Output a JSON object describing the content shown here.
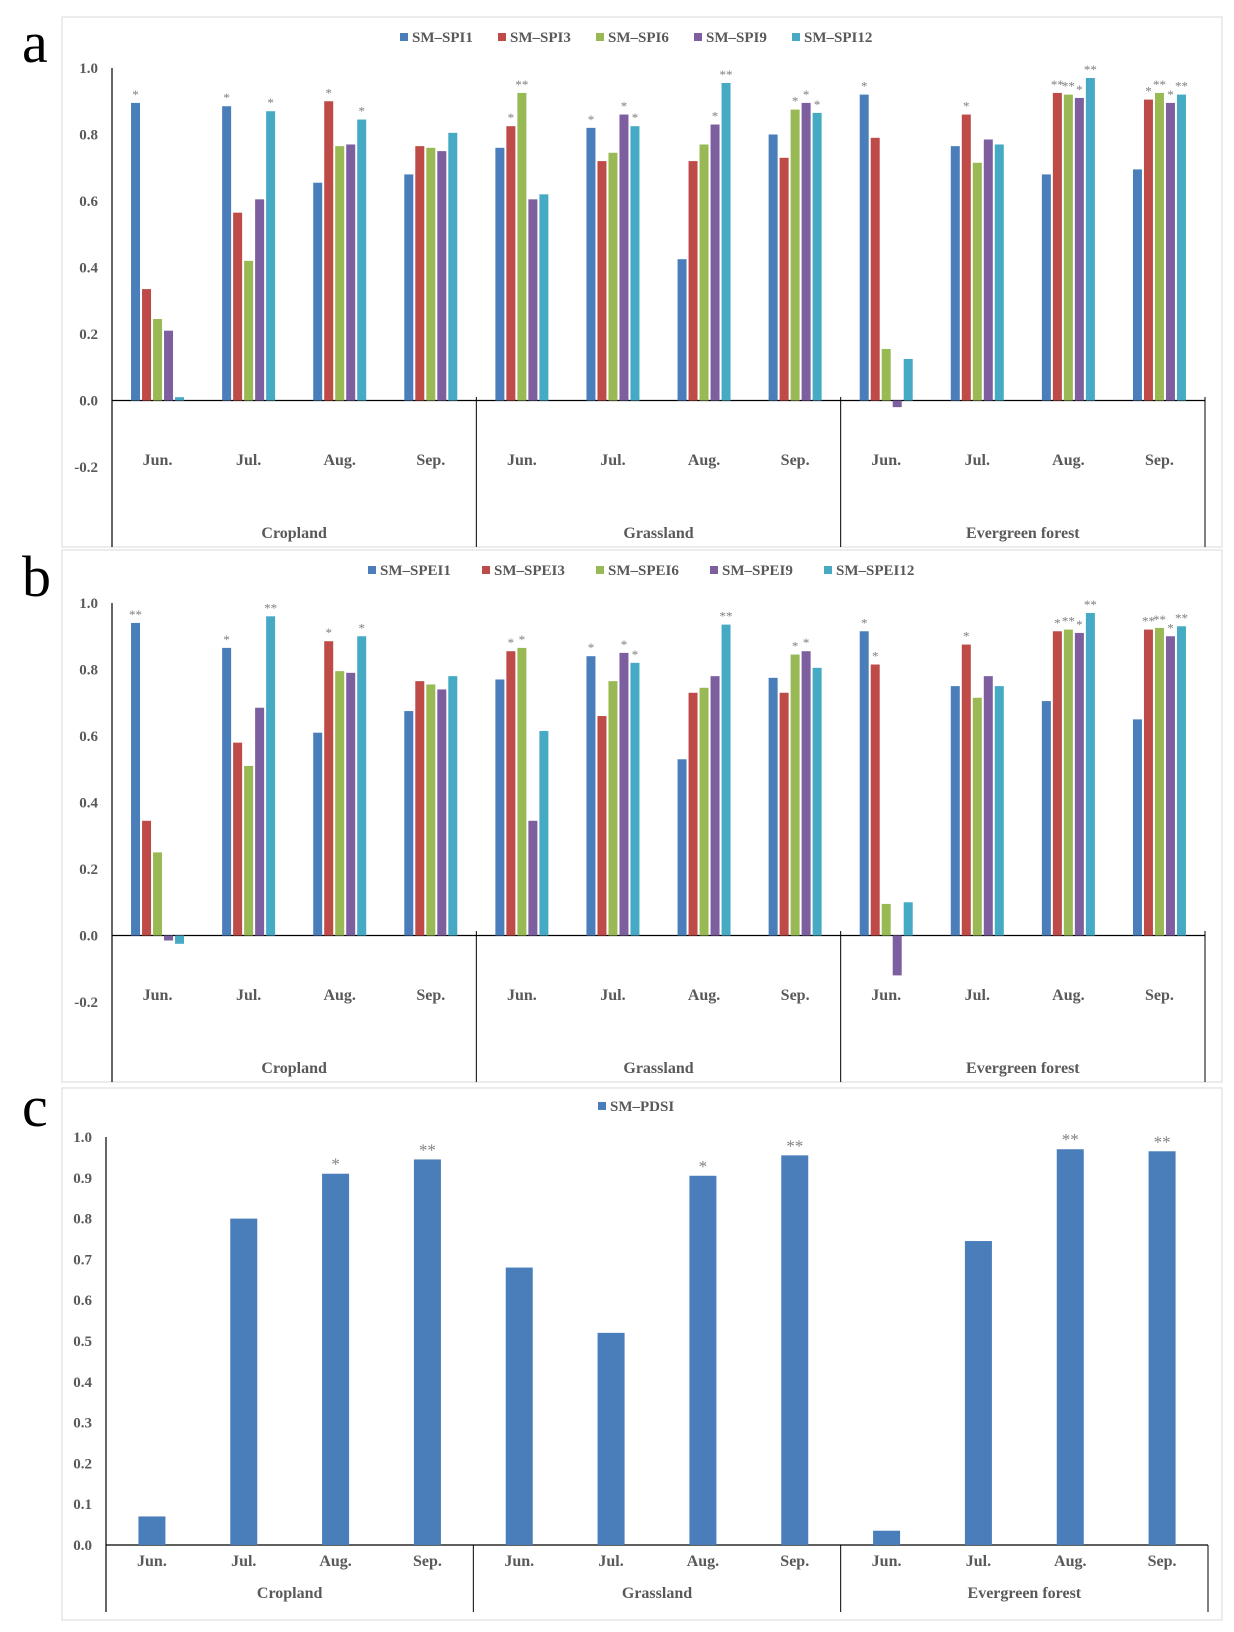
{
  "panels": {
    "a": {
      "label": "a"
    },
    "b": {
      "label": "b"
    },
    "c": {
      "label": "c"
    }
  },
  "chart_data": [
    {
      "panel": "a",
      "type": "bar",
      "groups": [
        "Cropland",
        "Grassland",
        "Evergreen forest"
      ],
      "categories": [
        "Jun.",
        "Jul.",
        "Aug.",
        "Sep.",
        "Jun.",
        "Jul.",
        "Aug.",
        "Sep.",
        "Jun.",
        "Jul.",
        "Aug.",
        "Sep."
      ],
      "ylim": [
        -0.2,
        1.0
      ],
      "yticks": [
        "1.0",
        "0.8",
        "0.6",
        "0.4",
        "0.2",
        "0.0",
        "-0.2"
      ],
      "legend_position": "top",
      "series": [
        {
          "name": "SM–SPI1",
          "color": "#4a7ebb",
          "values": [
            0.895,
            0.885,
            0.655,
            0.68,
            0.76,
            0.82,
            0.425,
            0.8,
            0.92,
            0.765,
            0.68,
            0.695
          ],
          "sig": [
            "*",
            "*",
            "",
            "",
            "",
            "*",
            "",
            "",
            "*",
            "",
            "",
            ""
          ]
        },
        {
          "name": "SM–SPI3",
          "color": "#be4b48",
          "values": [
            0.335,
            0.565,
            0.9,
            0.765,
            0.825,
            0.72,
            0.72,
            0.73,
            0.79,
            0.86,
            0.925,
            0.905
          ],
          "sig": [
            "",
            "",
            "*",
            "",
            "*",
            "",
            "",
            "",
            "",
            "*",
            "**",
            "*"
          ]
        },
        {
          "name": "SM–SPI6",
          "color": "#98b954",
          "values": [
            0.245,
            0.42,
            0.765,
            0.76,
            0.925,
            0.745,
            0.77,
            0.875,
            0.155,
            0.715,
            0.92,
            0.925
          ],
          "sig": [
            "",
            "",
            "",
            "",
            "**",
            "",
            "",
            "*",
            "",
            "",
            "**",
            "**"
          ]
        },
        {
          "name": "SM–SPI9",
          "color": "#7d5fa0",
          "values": [
            0.21,
            0.605,
            0.77,
            0.75,
            0.605,
            0.86,
            0.83,
            0.895,
            -0.02,
            0.785,
            0.91,
            0.895
          ],
          "sig": [
            "",
            "",
            "",
            "",
            "",
            "*",
            "*",
            "*",
            "",
            "",
            "*",
            "*"
          ]
        },
        {
          "name": "SM–SPI12",
          "color": "#46aac5",
          "values": [
            0.01,
            0.87,
            0.845,
            0.805,
            0.62,
            0.825,
            0.955,
            0.865,
            0.125,
            0.77,
            0.97,
            0.92
          ],
          "sig": [
            "",
            "*",
            "*",
            "",
            "",
            "*",
            "**",
            "*",
            "",
            "",
            "**",
            "**"
          ]
        }
      ]
    },
    {
      "panel": "b",
      "type": "bar",
      "groups": [
        "Cropland",
        "Grassland",
        "Evergreen forest"
      ],
      "categories": [
        "Jun.",
        "Jul.",
        "Aug.",
        "Sep.",
        "Jun.",
        "Jul.",
        "Aug.",
        "Sep.",
        "Jun.",
        "Jul.",
        "Aug.",
        "Sep."
      ],
      "ylim": [
        -0.2,
        1.0
      ],
      "yticks": [
        "1.0",
        "0.8",
        "0.6",
        "0.4",
        "0.2",
        "0.0",
        "-0.2"
      ],
      "legend_position": "top",
      "series": [
        {
          "name": "SM–SPEI1",
          "color": "#4a7ebb",
          "values": [
            0.94,
            0.865,
            0.61,
            0.675,
            0.77,
            0.84,
            0.53,
            0.775,
            0.915,
            0.75,
            0.705,
            0.65
          ],
          "sig": [
            "**",
            "*",
            "",
            "",
            "",
            "*",
            "",
            "",
            "*",
            "",
            "",
            ""
          ]
        },
        {
          "name": "SM–SPEI3",
          "color": "#be4b48",
          "values": [
            0.345,
            0.58,
            0.885,
            0.765,
            0.855,
            0.66,
            0.73,
            0.73,
            0.815,
            0.875,
            0.915,
            0.92
          ],
          "sig": [
            "",
            "",
            "*",
            "",
            "*",
            "",
            "",
            "",
            "*",
            "*",
            "*",
            "**"
          ]
        },
        {
          "name": "SM–SPEI6",
          "color": "#98b954",
          "values": [
            0.25,
            0.51,
            0.795,
            0.755,
            0.865,
            0.765,
            0.745,
            0.845,
            0.095,
            0.715,
            0.92,
            0.925
          ],
          "sig": [
            "",
            "",
            "",
            "",
            "*",
            "",
            "",
            "*",
            "",
            "",
            "**",
            "**"
          ]
        },
        {
          "name": "SM–SPEI9",
          "color": "#7d5fa0",
          "values": [
            -0.015,
            0.685,
            0.79,
            0.74,
            0.345,
            0.85,
            0.78,
            0.855,
            -0.12,
            0.78,
            0.91,
            0.9
          ],
          "sig": [
            "",
            "",
            "",
            "",
            "",
            "*",
            "",
            "*",
            "",
            "",
            "*",
            "*"
          ]
        },
        {
          "name": "SM–SPEI12",
          "color": "#46aac5",
          "values": [
            -0.025,
            0.96,
            0.9,
            0.78,
            0.615,
            0.82,
            0.935,
            0.805,
            0.1,
            0.75,
            0.97,
            0.93
          ],
          "sig": [
            "",
            "**",
            "*",
            "",
            "",
            "*",
            "**",
            "",
            "",
            "",
            "**",
            "**"
          ]
        }
      ]
    },
    {
      "panel": "c",
      "type": "bar",
      "groups": [
        "Cropland",
        "Grassland",
        "Evergreen forest"
      ],
      "categories": [
        "Jun.",
        "Jul.",
        "Aug.",
        "Sep.",
        "Jun.",
        "Jul.",
        "Aug.",
        "Sep.",
        "Jun.",
        "Jul.",
        "Aug.",
        "Sep."
      ],
      "ylim": [
        0.0,
        1.0
      ],
      "yticks": [
        "1.0",
        "0.9",
        "0.8",
        "0.7",
        "0.6",
        "0.5",
        "0.4",
        "0.3",
        "0.2",
        "0.1",
        "0.0"
      ],
      "legend_position": "top",
      "series": [
        {
          "name": "SM–PDSI",
          "color": "#4a7ebb",
          "values": [
            0.07,
            0.8,
            0.91,
            0.945,
            0.68,
            0.52,
            0.905,
            0.955,
            0.035,
            0.745,
            0.97,
            0.965
          ],
          "sig": [
            "",
            "",
            "*",
            "**",
            "",
            "",
            "*",
            "**",
            "",
            "",
            "**",
            "**"
          ]
        }
      ]
    }
  ]
}
